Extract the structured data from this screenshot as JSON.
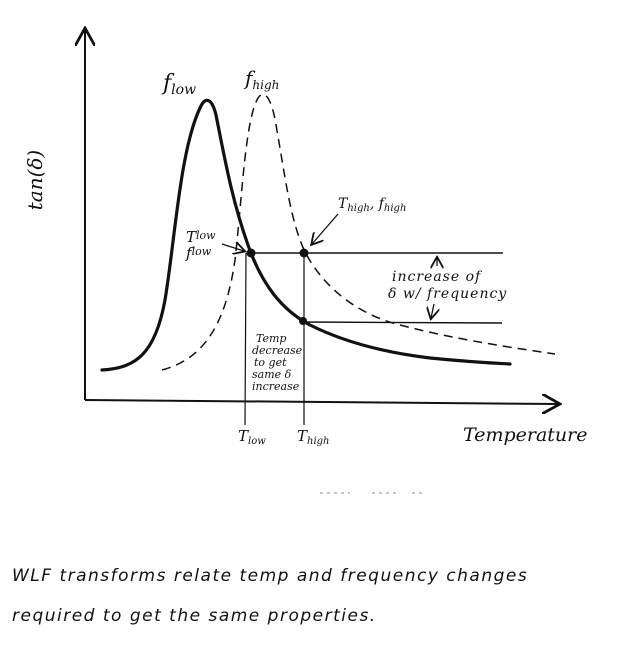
{
  "diagram": {
    "y_axis_label": "tan(δ)",
    "x_axis_label": "Temperature",
    "curve_low_label": "f",
    "curve_low_sub": "low",
    "curve_high_label": "f",
    "curve_high_sub": "high",
    "point_low_label_T": "T",
    "point_low_label_T_sub": "low",
    "point_low_label_f": "f",
    "point_low_label_f_sub": "low",
    "point_high_label_T": "T",
    "point_high_label_T_sub": "high",
    "point_high_label_f": "f",
    "point_high_label_f_sub": "high",
    "increase_note_line1": "increase of",
    "increase_note_line2": "δ w/ frequency",
    "temp_note_line1": "Temp",
    "temp_note_line2": "decrease",
    "temp_note_line3": "to get",
    "temp_note_line4": "same δ",
    "temp_note_line5": "increase",
    "tick_low": "T",
    "tick_low_sub": "low",
    "tick_high": "T",
    "tick_high_sub": "high"
  },
  "caption": {
    "line1": "WLF transforms relate temp and frequency changes",
    "line2": "required to get the same properties."
  }
}
